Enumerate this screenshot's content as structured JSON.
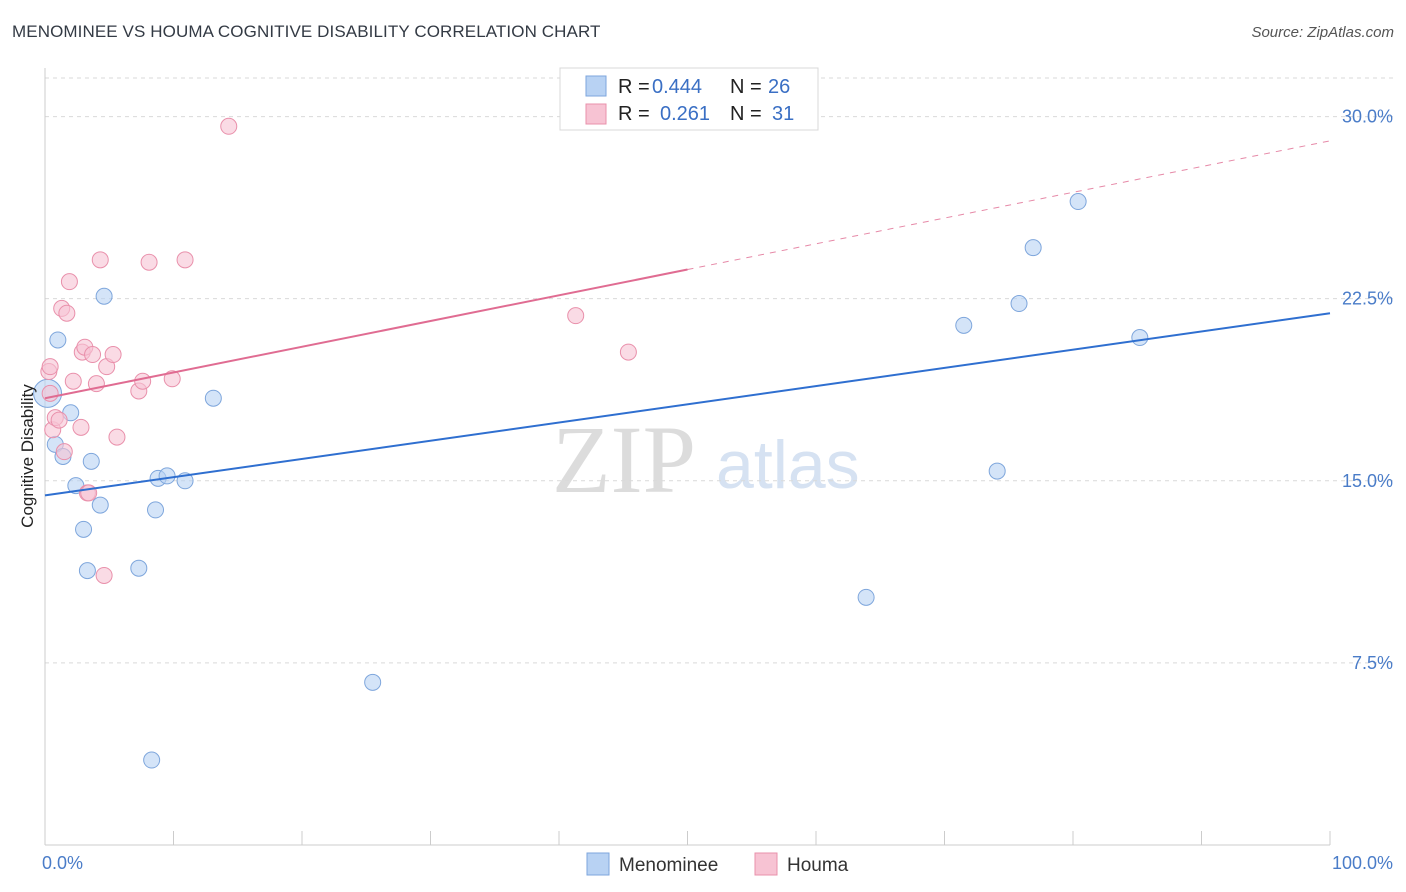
{
  "title": "MENOMINEE VS HOUMA COGNITIVE DISABILITY CORRELATION CHART",
  "source": "Source: ZipAtlas.com",
  "watermark": {
    "zip": "ZIP",
    "atlas": "atlas"
  },
  "colors": {
    "menominee_fill": "#b8d2f3",
    "menominee_stroke": "#7ea6dc",
    "menominee_line": "#2f6fd0",
    "houma_fill": "#f7c3d3",
    "houma_stroke": "#e990ab",
    "houma_line": "#e06c92",
    "tick_label": "#4a7cc8",
    "grid": "#d9d9d9"
  },
  "legend": {
    "r_label": "R =",
    "n_label": "N =",
    "rows": [
      {
        "series": "Menominee",
        "r": "0.444",
        "n": "26"
      },
      {
        "series": "Houma",
        "r": "0.261",
        "n": "31"
      }
    ]
  },
  "chart_data": {
    "type": "scatter",
    "title": "MENOMINEE VS HOUMA COGNITIVE DISABILITY CORRELATION CHART",
    "xlabel": "",
    "ylabel": "Cognitive Disability",
    "xlim": [
      0,
      100
    ],
    "ylim": [
      0,
      32
    ],
    "x_tick_labels": [
      "0.0%",
      "100.0%"
    ],
    "y_ticks": [
      7.5,
      15.0,
      22.5,
      30.0
    ],
    "y_tick_labels": [
      "7.5%",
      "15.0%",
      "22.5%",
      "30.0%"
    ],
    "grid": "horizontal dashed",
    "legend_position": "bottom-center",
    "series": [
      {
        "name": "Menominee",
        "points": [
          [
            0.2,
            18.6
          ],
          [
            0.8,
            16.5
          ],
          [
            1.0,
            20.8
          ],
          [
            1.4,
            16.0
          ],
          [
            2.0,
            17.8
          ],
          [
            2.4,
            14.8
          ],
          [
            3.0,
            13.0
          ],
          [
            3.3,
            11.3
          ],
          [
            3.6,
            15.8
          ],
          [
            4.3,
            14.0
          ],
          [
            4.6,
            22.6
          ],
          [
            7.3,
            11.4
          ],
          [
            8.3,
            3.5
          ],
          [
            8.6,
            13.8
          ],
          [
            8.8,
            15.1
          ],
          [
            9.5,
            15.2
          ],
          [
            10.9,
            15.0
          ],
          [
            13.1,
            18.4
          ],
          [
            25.5,
            6.7
          ],
          [
            63.9,
            10.2
          ],
          [
            71.5,
            21.4
          ],
          [
            74.1,
            15.4
          ],
          [
            75.8,
            22.3
          ],
          [
            76.9,
            24.6
          ],
          [
            80.4,
            26.5
          ],
          [
            85.2,
            20.9
          ]
        ],
        "trend": {
          "x": [
            0,
            100
          ],
          "y": [
            14.4,
            21.9
          ]
        }
      },
      {
        "name": "Houma",
        "points": [
          [
            0.3,
            19.5
          ],
          [
            0.4,
            19.7
          ],
          [
            0.6,
            17.1
          ],
          [
            0.8,
            17.6
          ],
          [
            1.1,
            17.5
          ],
          [
            1.3,
            22.1
          ],
          [
            1.5,
            16.2
          ],
          [
            1.7,
            21.9
          ],
          [
            1.9,
            23.2
          ],
          [
            2.2,
            19.1
          ],
          [
            2.8,
            17.2
          ],
          [
            2.9,
            20.3
          ],
          [
            3.1,
            20.5
          ],
          [
            3.3,
            14.5
          ],
          [
            3.4,
            14.5
          ],
          [
            3.7,
            20.2
          ],
          [
            4.0,
            19.0
          ],
          [
            4.3,
            24.1
          ],
          [
            4.6,
            11.1
          ],
          [
            4.8,
            19.7
          ],
          [
            5.3,
            20.2
          ],
          [
            5.6,
            16.8
          ],
          [
            7.3,
            18.7
          ],
          [
            7.6,
            19.1
          ],
          [
            8.1,
            24.0
          ],
          [
            9.9,
            19.2
          ],
          [
            10.9,
            24.1
          ],
          [
            14.3,
            29.6
          ],
          [
            41.3,
            21.8
          ],
          [
            45.4,
            20.3
          ],
          [
            0.4,
            18.6
          ]
        ],
        "trend": {
          "x": [
            0,
            50
          ],
          "y": [
            18.4,
            23.7
          ]
        },
        "trend_extension": {
          "x": [
            50,
            100
          ],
          "y": [
            23.7,
            29.0
          ]
        }
      }
    ]
  }
}
